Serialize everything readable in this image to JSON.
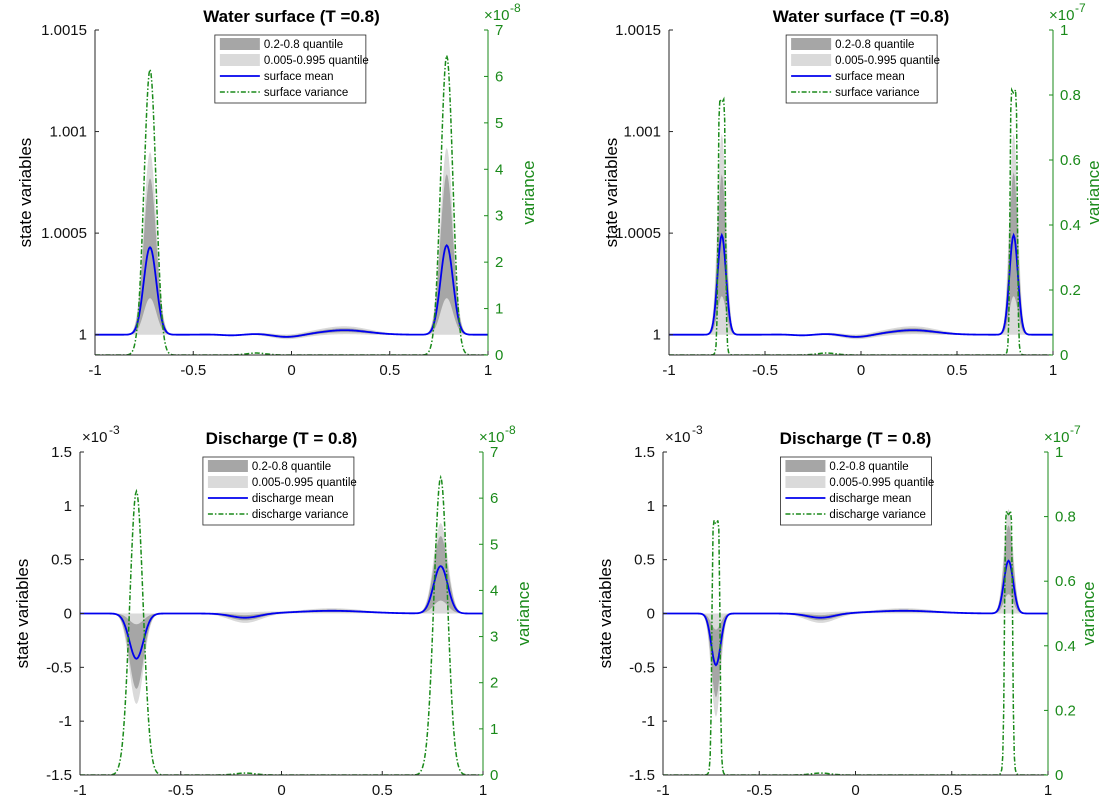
{
  "colors": {
    "q_inner": "#a6a6a6",
    "q_outer": "#dadada",
    "mean": "#0000ee",
    "variance": "#1a8a1a",
    "axis": "#262626"
  },
  "chart_data": [
    {
      "type": "area",
      "title": "Water surface (T =0.8)",
      "ylabel": "state variables",
      "y2label": "variance",
      "xlim": [
        -1,
        1
      ],
      "ylim": [
        0.9999,
        1.0015
      ],
      "y2lim": [
        0,
        7
      ],
      "xticks": [
        "-1",
        "-0.5",
        "0",
        "0.5",
        "1"
      ],
      "yticks": [
        {
          "v": 1.0,
          "label": "1"
        },
        {
          "v": 1.0005,
          "label": "1.0005"
        },
        {
          "v": 1.001,
          "label": "1.001"
        },
        {
          "v": 1.0015,
          "label": "1.0015"
        }
      ],
      "y2ticks": [
        "0",
        "1",
        "2",
        "3",
        "4",
        "5",
        "6",
        "7"
      ],
      "y_exponent": "",
      "y2_exponent": "×10",
      "y2_exponent_power": "-8",
      "legend": [
        "0.2-0.8 quantile",
        "0.005-0.995 quantile",
        "surface mean",
        "surface variance"
      ],
      "peaks": {
        "left": {
          "x": -0.72,
          "width": 0.032,
          "mean": 1.00043,
          "q_inner_hi": 1.00077,
          "q_inner_lo": 1.00018,
          "q_outer_hi": 1.0009,
          "q_outer_lo": 1.0,
          "var": 6.15
        },
        "right": {
          "x": 0.79,
          "width": 0.032,
          "mean": 1.00044,
          "q_inner_hi": 1.00079,
          "q_inner_lo": 1.00018,
          "q_outer_hi": 1.00092,
          "q_outer_lo": 1.0,
          "var": 6.45
        }
      },
      "baseline": 1.0,
      "var_shape": "gauss"
    },
    {
      "type": "area",
      "title": "Water surface (T =0.8)",
      "ylabel": "state variables",
      "y2label": "variance",
      "xlim": [
        -1,
        1
      ],
      "ylim": [
        0.9999,
        1.0015
      ],
      "y2lim": [
        0,
        1
      ],
      "xticks": [
        "-1",
        "-0.5",
        "0",
        "0.5",
        "1"
      ],
      "yticks": [
        {
          "v": 1.0,
          "label": "1"
        },
        {
          "v": 1.0005,
          "label": "1.0005"
        },
        {
          "v": 1.001,
          "label": "1.001"
        },
        {
          "v": 1.0015,
          "label": "1.0015"
        }
      ],
      "y2ticks": [
        "0",
        "0.2",
        "0.4",
        "0.6",
        "0.8",
        "1"
      ],
      "y_exponent": "",
      "y2_exponent": "×10",
      "y2_exponent_power": "-7",
      "legend": [
        "0.2-0.8 quantile",
        "0.005-0.995 quantile",
        "surface mean",
        "surface variance"
      ],
      "peaks": {
        "left": {
          "x": -0.725,
          "width": 0.022,
          "mean": 1.00049,
          "q_inner_hi": 1.00079,
          "q_inner_lo": 1.00019,
          "q_outer_hi": 1.00099,
          "q_outer_lo": 1.0,
          "var": 0.81
        },
        "right": {
          "x": 0.795,
          "width": 0.022,
          "mean": 1.00049,
          "q_inner_hi": 1.0008,
          "q_inner_lo": 1.00019,
          "q_outer_hi": 1.00099,
          "q_outer_lo": 1.0,
          "var": 0.84
        }
      },
      "baseline": 1.0,
      "var_shape": "flat"
    },
    {
      "type": "area",
      "title": "Discharge (T = 0.8)",
      "ylabel": "state variables",
      "y2label": "variance",
      "xlim": [
        -1,
        1
      ],
      "ylim": [
        -1.5,
        1.5
      ],
      "y2lim": [
        0,
        7
      ],
      "xticks": [
        "-1",
        "-0.5",
        "0",
        "0.5",
        "1"
      ],
      "yticks": [
        {
          "v": -1.5,
          "label": "-1.5"
        },
        {
          "v": -1,
          "label": "-1"
        },
        {
          "v": -0.5,
          "label": "-0.5"
        },
        {
          "v": 0,
          "label": "0"
        },
        {
          "v": 0.5,
          "label": "0.5"
        },
        {
          "v": 1,
          "label": "1"
        },
        {
          "v": 1.5,
          "label": "1.5"
        }
      ],
      "y2ticks": [
        "0",
        "1",
        "2",
        "3",
        "4",
        "5",
        "6",
        "7"
      ],
      "y_exponent": "×10",
      "y_exponent_power": "-3",
      "y2_exponent": "×10",
      "y2_exponent_power": "-8",
      "legend": [
        "0.2-0.8 quantile",
        "0.005-0.995 quantile",
        "discharge mean",
        "discharge variance"
      ],
      "peaks": {
        "left": {
          "x": -0.72,
          "width": 0.035,
          "mean": -0.42,
          "q_inner_hi": -0.1,
          "q_inner_lo": -0.7,
          "q_outer_hi": 0.0,
          "q_outer_lo": -0.84,
          "var": 6.15
        },
        "right": {
          "x": 0.79,
          "width": 0.035,
          "mean": 0.44,
          "q_inner_hi": 0.72,
          "q_inner_lo": 0.12,
          "q_outer_hi": 0.84,
          "q_outer_lo": 0.0,
          "var": 6.45
        }
      },
      "baseline": 0,
      "var_shape": "gauss"
    },
    {
      "type": "area",
      "title": "Discharge (T = 0.8)",
      "ylabel": "state variables",
      "y2label": "variance",
      "xlim": [
        -1,
        1
      ],
      "ylim": [
        -1.5,
        1.5
      ],
      "y2lim": [
        0,
        1
      ],
      "xticks": [
        "-1",
        "-0.5",
        "0",
        "0.5",
        "1"
      ],
      "yticks": [
        {
          "v": -1.5,
          "label": "-1.5"
        },
        {
          "v": -1,
          "label": "-1"
        },
        {
          "v": -0.5,
          "label": "-0.5"
        },
        {
          "v": 0,
          "label": "0"
        },
        {
          "v": 0.5,
          "label": "0.5"
        },
        {
          "v": 1,
          "label": "1"
        },
        {
          "v": 1.5,
          "label": "1.5"
        }
      ],
      "y2ticks": [
        "0",
        "0.2",
        "0.4",
        "0.6",
        "0.8",
        "1"
      ],
      "y_exponent": "×10",
      "y_exponent_power": "-3",
      "y2_exponent": "×10",
      "y2_exponent_power": "-7",
      "legend": [
        "0.2-0.8 quantile",
        "0.005-0.995 quantile",
        "discharge mean",
        "discharge variance"
      ],
      "peaks": {
        "left": {
          "x": -0.725,
          "width": 0.024,
          "mean": -0.48,
          "q_inner_hi": -0.15,
          "q_inner_lo": -0.78,
          "q_outer_hi": 0.0,
          "q_outer_lo": -0.96,
          "var": 0.81
        },
        "right": {
          "x": 0.795,
          "width": 0.024,
          "mean": 0.49,
          "q_inner_hi": 0.82,
          "q_inner_lo": 0.18,
          "q_outer_hi": 0.97,
          "q_outer_lo": 0.0,
          "var": 0.84
        }
      },
      "baseline": 0,
      "var_shape": "flat"
    }
  ]
}
